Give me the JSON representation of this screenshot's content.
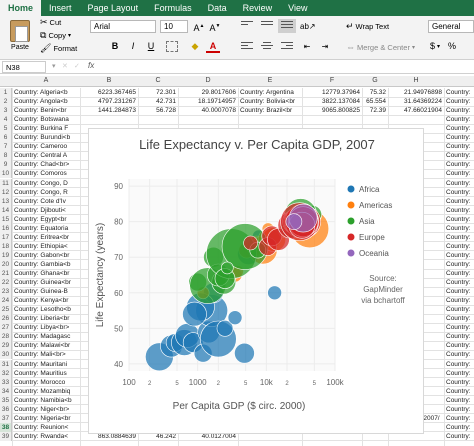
{
  "ribbon": {
    "tabs": [
      "Home",
      "Insert",
      "Page Layout",
      "Formulas",
      "Data",
      "Review",
      "View"
    ],
    "paste_label": "Paste",
    "cut_label": "Cut",
    "copy_label": "Copy",
    "format_label": "Format",
    "font_name": "Arial",
    "font_size": "10",
    "wrap_text_label": "Wrap Text",
    "merge_label": "Merge & Center",
    "number_format": "General",
    "currency_symbol": "$"
  },
  "formula_bar": {
    "name_box": "N38",
    "fx": "fx"
  },
  "columns": [
    "A",
    "B",
    "C",
    "D",
    "E",
    "F",
    "G",
    "H"
  ],
  "rows": [
    {
      "n": "1",
      "a": "Country: Algeria<b",
      "b": "6223.367465",
      "c": "72.301",
      "d": "29.8017606",
      "e": "Country: Argentina",
      "f": "12779.37964",
      "g": "75.32",
      "h": "21.94976898",
      "i": "Country:"
    },
    {
      "n": "2",
      "a": "Country: Angola<b",
      "b": "4797.231267",
      "c": "42.731",
      "d": "18.19714957",
      "e": "Country: Bolivia<br",
      "f": "3822.137084",
      "g": "65.554",
      "h": "31.64369224",
      "i": "Country:"
    },
    {
      "n": "3",
      "a": "Country: Benin<br",
      "b": "1441.284873",
      "c": "56.728",
      "d": "40.0007078",
      "e": "Country: Brazil<br",
      "f": "9065.800825",
      "g": "72.39",
      "h": "47.66021904",
      "i": "Country:"
    },
    {
      "n": "4",
      "a": "Country: Botswana",
      "i": "Country:"
    },
    {
      "n": "5",
      "a": "Country: Burkina F",
      "i": "Country:"
    },
    {
      "n": "6",
      "a": "Country: Burundi<b",
      "i": "Country:"
    },
    {
      "n": "7",
      "a": "Country: Cameroo",
      "i": "Country:"
    },
    {
      "n": "8",
      "a": "Country: Central A",
      "i": "Country:"
    },
    {
      "n": "9",
      "a": "Country: Chad<br>",
      "i": "Country:"
    },
    {
      "n": "10",
      "a": "Country: Comoros",
      "i": "Country:"
    },
    {
      "n": "11",
      "a": "Country: Congo, D",
      "i": "Country:"
    },
    {
      "n": "12",
      "a": "Country: Congo, R",
      "i": "Country:"
    },
    {
      "n": "13",
      "a": "Country: Cote d'Iv",
      "i": "Country:"
    },
    {
      "n": "14",
      "a": "Country: Djibouti<",
      "i": "Country:"
    },
    {
      "n": "15",
      "a": "Country: Egypt<br",
      "i": "Country:"
    },
    {
      "n": "16",
      "a": "Country: Equatoria",
      "i": "Country:"
    },
    {
      "n": "17",
      "a": "Country: Eritrea<br",
      "i": "Country:"
    },
    {
      "n": "18",
      "a": "Country: Ethiopia<",
      "i": "Country:"
    },
    {
      "n": "19",
      "a": "Country: Gabon<br",
      "i": "Country:"
    },
    {
      "n": "20",
      "a": "Country: Gambia<b",
      "i": "Country:"
    },
    {
      "n": "21",
      "a": "Country: Ghana<br",
      "i": "Country:"
    },
    {
      "n": "22",
      "a": "Country: Guinea<br",
      "i": "Country:"
    },
    {
      "n": "23",
      "a": "Country: Guinea-B",
      "i": "Country:"
    },
    {
      "n": "24",
      "a": "Country: Kenya<br",
      "i": "Country:"
    },
    {
      "n": "25",
      "a": "Country: Lesotho<b",
      "i": "Country:"
    },
    {
      "n": "26",
      "a": "Country: Liberia<br",
      "i": "Country:"
    },
    {
      "n": "27",
      "a": "Country: Libya<br>",
      "i": "Country:"
    },
    {
      "n": "28",
      "a": "Country: Madagasc",
      "i": "Country:"
    },
    {
      "n": "29",
      "a": "Country: Malawi<br",
      "i": "Country:"
    },
    {
      "n": "30",
      "a": "Country: Mali<br>",
      "i": "Country:"
    },
    {
      "n": "31",
      "a": "Country: Mauritani",
      "i": "Country:"
    },
    {
      "n": "32",
      "a": "Country: Mauritius",
      "i": "Country:"
    },
    {
      "n": "33",
      "a": "Country: Morocco",
      "i": "Country:"
    },
    {
      "n": "34",
      "a": "Country: Mozambiq",
      "i": "Country:"
    },
    {
      "n": "35",
      "a": "Country: Namibia<b",
      "i": "Country:"
    },
    {
      "n": "36",
      "a": "Country: Niger<br>",
      "b": "619.6768924",
      "c": "56.867",
      "d": "41.89716494",
      "i": "Country:"
    },
    {
      "n": "37",
      "a": "Country: Nigeria<br",
      "b": "2013.977305",
      "c": "46.859",
      "d": "60",
      "e": "https://plot.ly/~Dreamshot/554/life-expectancy-v-per-capita-gdp-2007/",
      "i": "Country:"
    },
    {
      "n": "38",
      "a": "Country: Reunion<",
      "b": "7670.122558",
      "c": "76.442",
      "d": "4.6127434",
      "i": "Country:"
    },
    {
      "n": "39",
      "a": "Country: Rwanda<",
      "b": "863.0884639",
      "c": "46.242",
      "d": "40.0127004",
      "i": "Country:"
    }
  ],
  "chart_data": {
    "type": "scatter",
    "title": "Life Expectancy v. Per Capita GDP, 2007",
    "xlabel": "Per Capita GDP ($ circ. 2000)",
    "ylabel": "Life Expectancy (years)",
    "x_scale": "log",
    "xlim": [
      100,
      100000
    ],
    "ylim": [
      38,
      92
    ],
    "x_ticks": [
      "100",
      "2",
      "5",
      "1000",
      "2",
      "5",
      "10k",
      "2",
      "5",
      "100k"
    ],
    "y_ticks": [
      "40",
      "50",
      "60",
      "70",
      "80",
      "90"
    ],
    "legend": [
      "Africa",
      "Americas",
      "Asia",
      "Europe",
      "Oceania"
    ],
    "legend_placement": "right",
    "annotation": [
      "Source:",
      "GapMinder",
      "via bchartoff"
    ],
    "colors": {
      "Africa": "#1f77b4",
      "Americas": "#ff7f0e",
      "Asia": "#2ca02c",
      "Europe": "#d62728",
      "Oceania": "#9467bd"
    },
    "series": [
      {
        "name": "Africa",
        "points": [
          [
            277,
            42
          ],
          [
            415,
            45
          ],
          [
            470,
            46
          ],
          [
            640,
            46
          ],
          [
            710,
            48
          ],
          [
            860,
            46
          ],
          [
            1200,
            43
          ],
          [
            1450,
            49
          ],
          [
            1600,
            55
          ],
          [
            2000,
            47
          ],
          [
            2500,
            50
          ],
          [
            1700,
            60
          ],
          [
            1100,
            56
          ],
          [
            900,
            54
          ],
          [
            3500,
            53
          ],
          [
            4800,
            43
          ],
          [
            6200,
            72
          ],
          [
            7700,
            76
          ],
          [
            13200,
            60
          ],
          [
            5500,
            71
          ],
          [
            10000,
            74
          ]
        ],
        "sizes": [
          14,
          11,
          9,
          13,
          12,
          10,
          9,
          11,
          16,
          18,
          8,
          10,
          14,
          12,
          7,
          10,
          9,
          6,
          7,
          11,
          8
        ]
      },
      {
        "name": "Americas",
        "points": [
          [
            1200,
            60
          ],
          [
            3500,
            65
          ],
          [
            3800,
            66
          ],
          [
            5200,
            72
          ],
          [
            7000,
            73
          ],
          [
            7100,
            74
          ],
          [
            9000,
            72
          ],
          [
            10600,
            78
          ],
          [
            11000,
            75
          ],
          [
            12800,
            75
          ],
          [
            18000,
            77
          ],
          [
            36300,
            80
          ],
          [
            42900,
            78
          ]
        ],
        "sizes": [
          6,
          7,
          6,
          8,
          9,
          7,
          14,
          6,
          11,
          12,
          5,
          10,
          19
        ]
      },
      {
        "name": "Asia",
        "points": [
          [
            1000,
            63
          ],
          [
            1400,
            62
          ],
          [
            2400,
            63
          ],
          [
            1700,
            70
          ],
          [
            2000,
            65
          ],
          [
            3100,
            71
          ],
          [
            4900,
            73
          ],
          [
            7500,
            72
          ],
          [
            2500,
            64
          ],
          [
            2700,
            67
          ],
          [
            47300,
            82
          ],
          [
            31600,
            82
          ],
          [
            22300,
            78
          ],
          [
            28600,
            81
          ],
          [
            39700,
            80
          ]
        ],
        "sizes": [
          9,
          18,
          12,
          10,
          11,
          25,
          23,
          8,
          10,
          6,
          9,
          16,
          10,
          7,
          6
        ]
      },
      {
        "name": "Europe",
        "points": [
          [
            5900,
            74
          ],
          [
            10500,
            73
          ],
          [
            12000,
            76
          ],
          [
            15000,
            75
          ],
          [
            22800,
            79
          ],
          [
            25800,
            80
          ],
          [
            28800,
            80
          ],
          [
            33200,
            80
          ],
          [
            36100,
            80
          ],
          [
            37500,
            80
          ],
          [
            30500,
            80
          ],
          [
            34400,
            80
          ],
          [
            33000,
            79
          ]
        ],
        "sizes": [
          7,
          9,
          10,
          11,
          13,
          12,
          14,
          17,
          16,
          12,
          19,
          15,
          13
        ]
      },
      {
        "name": "Oceania",
        "points": [
          [
            34400,
            81
          ],
          [
            25200,
            80
          ]
        ],
        "sizes": [
          14,
          8
        ]
      }
    ]
  }
}
